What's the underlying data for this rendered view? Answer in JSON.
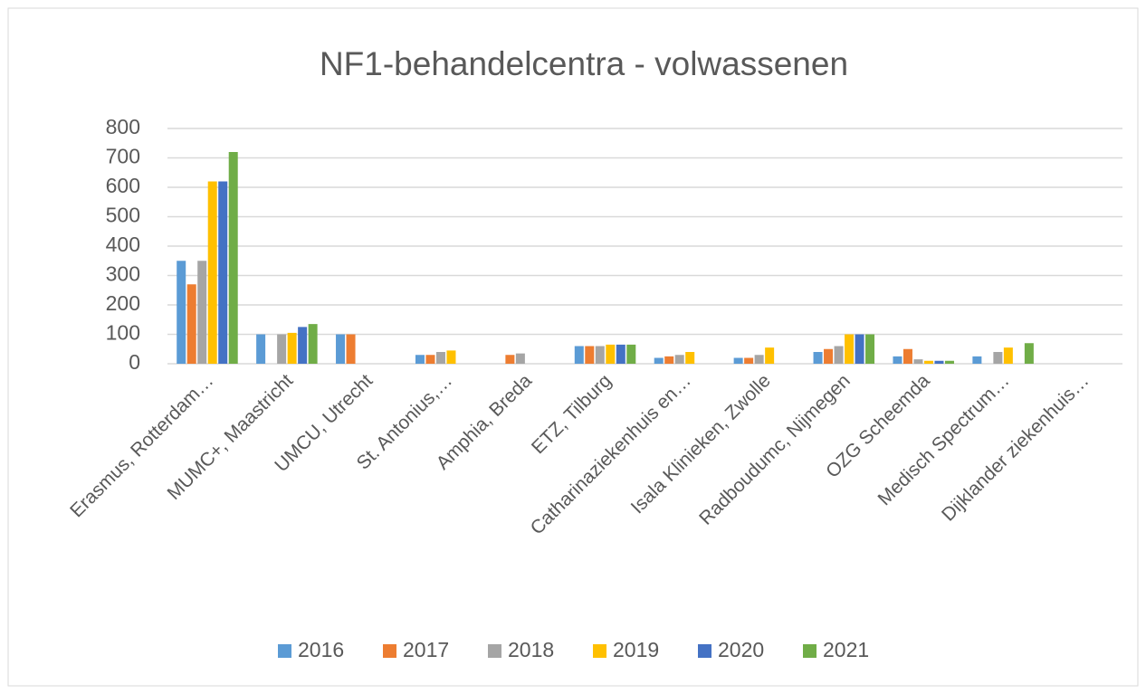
{
  "chart_data": {
    "type": "bar",
    "title": "NF1-behandelcentra  - volwassenen",
    "categories": [
      "Erasmus, Rotterdam…",
      "MUMC+, Maastricht",
      "UMCU, Utrecht",
      "St. Antonius,…",
      "Amphia, Breda",
      "ETZ, Tilburg",
      "Catharinaziekenhuis en…",
      "Isala Klinieken, Zwolle",
      "Radboudumc, Nijmegen",
      "OZG Scheemda",
      "Medisch Spectrum…",
      "Dijklander ziekenhuis…"
    ],
    "series": [
      {
        "name": "2016",
        "color": "#5b9bd5",
        "values": [
          350,
          100,
          100,
          30,
          null,
          60,
          20,
          20,
          40,
          25,
          25,
          null
        ]
      },
      {
        "name": "2017",
        "color": "#ed7d31",
        "values": [
          270,
          null,
          100,
          30,
          30,
          60,
          25,
          20,
          50,
          50,
          null,
          null
        ]
      },
      {
        "name": "2018",
        "color": "#a5a5a5",
        "values": [
          350,
          100,
          null,
          40,
          35,
          60,
          30,
          30,
          60,
          15,
          40,
          null
        ]
      },
      {
        "name": "2019",
        "color": "#ffc000",
        "values": [
          620,
          105,
          null,
          45,
          null,
          65,
          40,
          55,
          100,
          10,
          55,
          null
        ]
      },
      {
        "name": "2020",
        "color": "#4472c4",
        "values": [
          620,
          125,
          null,
          null,
          null,
          65,
          null,
          null,
          100,
          10,
          null,
          null
        ]
      },
      {
        "name": "2021",
        "color": "#70ad47",
        "values": [
          720,
          135,
          null,
          null,
          null,
          65,
          null,
          null,
          100,
          10,
          70,
          null
        ]
      }
    ],
    "ylim": [
      0,
      800
    ],
    "yticks": [
      0,
      100,
      200,
      300,
      400,
      500,
      600,
      700,
      800
    ],
    "grid": true,
    "legend": "bottom"
  }
}
